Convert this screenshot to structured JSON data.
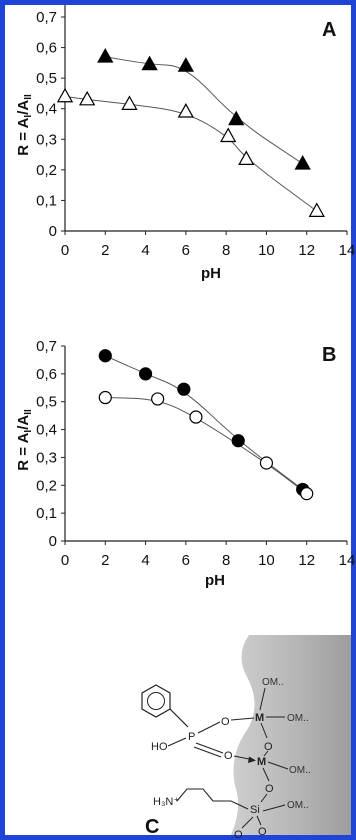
{
  "chart_data": [
    {
      "type": "scatter",
      "panel": "A",
      "xlabel": "pH",
      "ylabel": "R = A_I/A_II",
      "ylabel_parts": {
        "main": "R = A",
        "sub1": "I",
        "mid": "/A",
        "sub2": "II"
      },
      "xlim": [
        0,
        14
      ],
      "ylim": [
        0,
        0.7
      ],
      "x_ticks": [
        "0",
        "2",
        "4",
        "6",
        "8",
        "10",
        "12",
        "14"
      ],
      "y_ticks": [
        "0",
        "0,1",
        "0,2",
        "0,3",
        "0,4",
        "0,5",
        "0,6",
        "0,7"
      ],
      "grid": false,
      "series": [
        {
          "marker": "filled-triangle",
          "color": "#000000",
          "x": [
            2,
            4.2,
            6,
            8.5,
            11.8
          ],
          "y": [
            0.57,
            0.545,
            0.54,
            0.365,
            0.22
          ]
        },
        {
          "marker": "open-triangle",
          "color": "#000000",
          "x": [
            0,
            1.1,
            3.2,
            6,
            8.1,
            9,
            12.5
          ],
          "y": [
            0.44,
            0.43,
            0.415,
            0.39,
            0.31,
            0.235,
            0.065
          ]
        }
      ]
    },
    {
      "type": "scatter",
      "panel": "B",
      "xlabel": "pH",
      "ylabel": "R = A_I/A_II",
      "ylabel_parts": {
        "main": "R = A",
        "sub1": "I",
        "mid": "/A",
        "sub2": "II"
      },
      "xlim": [
        0,
        14
      ],
      "ylim": [
        0,
        0.7
      ],
      "x_ticks": [
        "0",
        "2",
        "4",
        "6",
        "8",
        "10",
        "12",
        "14"
      ],
      "y_ticks": [
        "0",
        "0,1",
        "0,2",
        "0,3",
        "0,4",
        "0,5",
        "0,6",
        "0,7"
      ],
      "grid": false,
      "series": [
        {
          "marker": "filled-circle",
          "color": "#000000",
          "x": [
            2,
            4,
            5.9,
            8.6,
            11.8
          ],
          "y": [
            0.665,
            0.6,
            0.545,
            0.36,
            0.185
          ]
        },
        {
          "marker": "open-circle",
          "color": "#000000",
          "x": [
            2,
            4.6,
            6.5,
            10,
            12
          ],
          "y": [
            0.515,
            0.51,
            0.445,
            0.28,
            0.17
          ]
        }
      ]
    }
  ],
  "panel_c": {
    "letter": "C",
    "labels": {
      "om1": "OM..",
      "om2": "OM..",
      "om3": "OM..",
      "om4": "OM..",
      "m_top": "M",
      "m_mid": "M",
      "p": "P",
      "ho": "HO",
      "o1": "O",
      "o2": "O",
      "o3": "O",
      "o4": "O",
      "o5": "O",
      "o6": "O",
      "si": "Si",
      "amine": "H₃N⁺"
    }
  }
}
